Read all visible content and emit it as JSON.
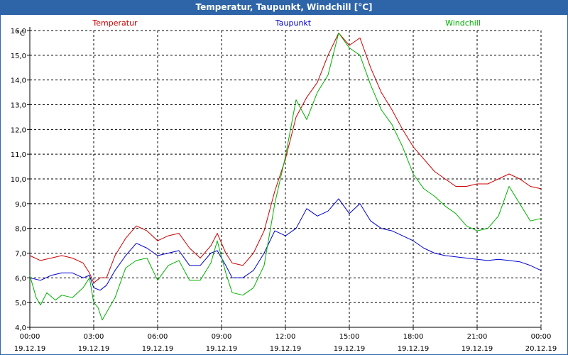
{
  "title": "Temperatur, Taupunkt, Windchill [°C]",
  "chart_data": {
    "type": "line",
    "title": "Temperatur, Taupunkt, Windchill [°C]",
    "ylabel": "°C",
    "ylim": [
      4.0,
      16.0
    ],
    "y_ticks": [
      "4,0",
      "5,0",
      "6,0",
      "7,0",
      "8,0",
      "9,0",
      "10,0",
      "11,0",
      "12,0",
      "13,0",
      "14,0",
      "15,0",
      "16,0"
    ],
    "xlim": [
      0,
      24
    ],
    "x_ticks": [
      {
        "time": "00:00",
        "date": "19.12.19"
      },
      {
        "time": "03:00",
        "date": "19.12.19"
      },
      {
        "time": "06:00",
        "date": "19.12.19"
      },
      {
        "time": "09:00",
        "date": "19.12.19"
      },
      {
        "time": "12:00",
        "date": "19.12.19"
      },
      {
        "time": "15:00",
        "date": "19.12.19"
      },
      {
        "time": "18:00",
        "date": "19.12.19"
      },
      {
        "time": "21:00",
        "date": "19.12.19"
      },
      {
        "time": "00:00",
        "date": "20.12.19"
      }
    ],
    "grid": true,
    "series": [
      {
        "name": "Temperatur",
        "color": "#cc0000",
        "points": [
          [
            0,
            6.9
          ],
          [
            0.5,
            6.7
          ],
          [
            1.0,
            6.8
          ],
          [
            1.5,
            6.9
          ],
          [
            2.0,
            6.8
          ],
          [
            2.5,
            6.6
          ],
          [
            2.8,
            6.2
          ],
          [
            3.0,
            5.8
          ],
          [
            3.3,
            6.0
          ],
          [
            3.6,
            6.0
          ],
          [
            4.0,
            6.9
          ],
          [
            4.5,
            7.6
          ],
          [
            5.0,
            8.1
          ],
          [
            5.5,
            7.9
          ],
          [
            6.0,
            7.5
          ],
          [
            6.5,
            7.7
          ],
          [
            7.0,
            7.8
          ],
          [
            7.5,
            7.2
          ],
          [
            8.0,
            6.8
          ],
          [
            8.5,
            7.3
          ],
          [
            8.8,
            7.8
          ],
          [
            9.2,
            7.0
          ],
          [
            9.5,
            6.6
          ],
          [
            10.0,
            6.5
          ],
          [
            10.5,
            7.0
          ],
          [
            11.0,
            7.9
          ],
          [
            11.5,
            9.5
          ],
          [
            12.0,
            10.8
          ],
          [
            12.5,
            12.5
          ],
          [
            13.0,
            13.3
          ],
          [
            13.5,
            13.9
          ],
          [
            14.0,
            15.0
          ],
          [
            14.5,
            15.9
          ],
          [
            15.0,
            15.4
          ],
          [
            15.5,
            15.7
          ],
          [
            16.0,
            14.5
          ],
          [
            16.5,
            13.5
          ],
          [
            17.0,
            12.8
          ],
          [
            17.5,
            12.0
          ],
          [
            18.0,
            11.3
          ],
          [
            18.5,
            10.8
          ],
          [
            19.0,
            10.3
          ],
          [
            19.5,
            10.0
          ],
          [
            20.0,
            9.7
          ],
          [
            20.5,
            9.7
          ],
          [
            21.0,
            9.8
          ],
          [
            21.5,
            9.8
          ],
          [
            22.0,
            10.0
          ],
          [
            22.5,
            10.2
          ],
          [
            23.0,
            10.0
          ],
          [
            23.5,
            9.7
          ],
          [
            24.0,
            9.6
          ]
        ]
      },
      {
        "name": "Taupunkt",
        "color": "#0000cc",
        "points": [
          [
            0,
            6.0
          ],
          [
            0.5,
            5.9
          ],
          [
            1.0,
            6.1
          ],
          [
            1.5,
            6.2
          ],
          [
            2.0,
            6.2
          ],
          [
            2.5,
            6.0
          ],
          [
            2.8,
            6.1
          ],
          [
            3.0,
            5.6
          ],
          [
            3.3,
            5.5
          ],
          [
            3.6,
            5.7
          ],
          [
            4.0,
            6.3
          ],
          [
            4.5,
            6.9
          ],
          [
            5.0,
            7.4
          ],
          [
            5.5,
            7.2
          ],
          [
            6.0,
            6.9
          ],
          [
            6.5,
            7.0
          ],
          [
            7.0,
            7.1
          ],
          [
            7.5,
            6.5
          ],
          [
            8.0,
            6.5
          ],
          [
            8.5,
            7.0
          ],
          [
            8.8,
            7.1
          ],
          [
            9.2,
            6.5
          ],
          [
            9.5,
            6.0
          ],
          [
            10.0,
            6.0
          ],
          [
            10.5,
            6.3
          ],
          [
            11.0,
            7.0
          ],
          [
            11.5,
            7.9
          ],
          [
            12.0,
            7.7
          ],
          [
            12.5,
            8.0
          ],
          [
            13.0,
            8.8
          ],
          [
            13.5,
            8.5
          ],
          [
            14.0,
            8.7
          ],
          [
            14.5,
            9.2
          ],
          [
            15.0,
            8.6
          ],
          [
            15.5,
            9.0
          ],
          [
            16.0,
            8.3
          ],
          [
            16.5,
            8.0
          ],
          [
            17.0,
            7.9
          ],
          [
            17.5,
            7.7
          ],
          [
            18.0,
            7.5
          ],
          [
            18.5,
            7.2
          ],
          [
            19.0,
            7.0
          ],
          [
            19.5,
            6.9
          ],
          [
            20.0,
            6.85
          ],
          [
            20.5,
            6.8
          ],
          [
            21.0,
            6.75
          ],
          [
            21.5,
            6.7
          ],
          [
            22.0,
            6.75
          ],
          [
            22.5,
            6.7
          ],
          [
            23.0,
            6.65
          ],
          [
            23.5,
            6.5
          ],
          [
            24.0,
            6.3
          ]
        ]
      },
      {
        "name": "Windchill",
        "color": "#00b000",
        "points": [
          [
            0,
            6.1
          ],
          [
            0.3,
            5.2
          ],
          [
            0.5,
            4.9
          ],
          [
            0.8,
            5.4
          ],
          [
            1.2,
            5.1
          ],
          [
            1.5,
            5.3
          ],
          [
            2.0,
            5.2
          ],
          [
            2.5,
            5.6
          ],
          [
            2.8,
            6.0
          ],
          [
            3.0,
            5.0
          ],
          [
            3.2,
            4.8
          ],
          [
            3.4,
            4.3
          ],
          [
            3.6,
            4.6
          ],
          [
            4.0,
            5.2
          ],
          [
            4.5,
            6.4
          ],
          [
            5.0,
            6.7
          ],
          [
            5.5,
            6.8
          ],
          [
            6.0,
            5.9
          ],
          [
            6.5,
            6.5
          ],
          [
            7.0,
            6.7
          ],
          [
            7.5,
            5.9
          ],
          [
            8.0,
            5.9
          ],
          [
            8.5,
            6.6
          ],
          [
            8.8,
            7.5
          ],
          [
            9.2,
            6.2
          ],
          [
            9.5,
            5.4
          ],
          [
            10.0,
            5.3
          ],
          [
            10.5,
            5.6
          ],
          [
            11.0,
            6.5
          ],
          [
            11.5,
            9.0
          ],
          [
            12.0,
            10.9
          ],
          [
            12.5,
            13.2
          ],
          [
            13.0,
            12.4
          ],
          [
            13.5,
            13.5
          ],
          [
            14.0,
            14.2
          ],
          [
            14.5,
            15.9
          ],
          [
            15.0,
            15.3
          ],
          [
            15.5,
            15.0
          ],
          [
            16.0,
            13.8
          ],
          [
            16.5,
            12.8
          ],
          [
            17.0,
            12.2
          ],
          [
            17.5,
            11.3
          ],
          [
            18.0,
            10.2
          ],
          [
            18.5,
            9.6
          ],
          [
            19.0,
            9.3
          ],
          [
            19.5,
            8.9
          ],
          [
            20.0,
            8.6
          ],
          [
            20.5,
            8.1
          ],
          [
            21.0,
            7.9
          ],
          [
            21.5,
            8.0
          ],
          [
            22.0,
            8.5
          ],
          [
            22.5,
            9.7
          ],
          [
            23.0,
            9.0
          ],
          [
            23.5,
            8.3
          ],
          [
            24.0,
            8.4
          ]
        ]
      }
    ]
  }
}
